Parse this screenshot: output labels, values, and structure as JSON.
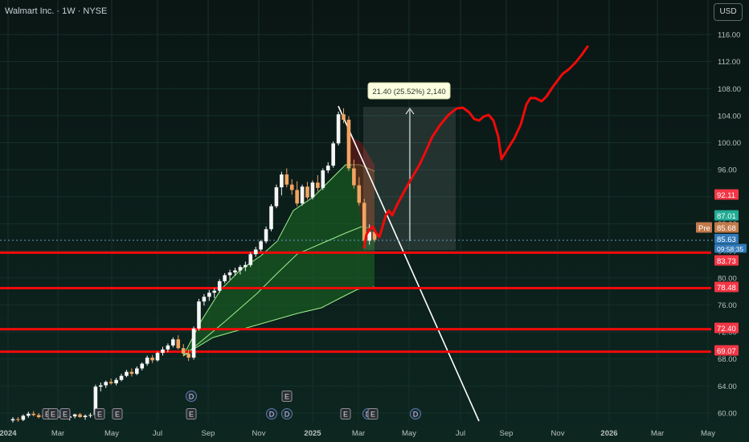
{
  "header": {
    "title": "Walmart Inc. · 1W · NYSE",
    "currency": "USD"
  },
  "chart_data": {
    "type": "candlestick",
    "title": "Walmart Inc. · 1W · NYSE",
    "x_labels": [
      "2024",
      "Mar",
      "May",
      "Jul",
      "Sep",
      "Nov",
      "2025",
      "Mar",
      "May",
      "Jul",
      "Sep",
      "Nov",
      "2026",
      "Mar",
      "May"
    ],
    "y_ticks": [
      116,
      112,
      108,
      104,
      100,
      96,
      92,
      88,
      84,
      80,
      76,
      72,
      68,
      64,
      60
    ],
    "y_range": [
      59,
      119
    ],
    "candles": [
      [
        58.9,
        59.4,
        58.6,
        59.1
      ],
      [
        59.1,
        59.4,
        58.7,
        59.0
      ],
      [
        59.0,
        59.8,
        58.8,
        59.6
      ],
      [
        59.6,
        60.2,
        59.3,
        59.9
      ],
      [
        59.9,
        60.3,
        59.5,
        59.7
      ],
      [
        59.7,
        60.0,
        59.2,
        59.4
      ],
      [
        59.4,
        59.9,
        59.1,
        59.7
      ],
      [
        59.7,
        60.0,
        59.3,
        59.5
      ],
      [
        59.5,
        59.9,
        59.2,
        59.7
      ],
      [
        59.7,
        60.0,
        59.3,
        59.6
      ],
      [
        59.6,
        59.9,
        59.1,
        59.3
      ],
      [
        59.3,
        59.7,
        58.9,
        59.5
      ],
      [
        59.5,
        59.9,
        59.2,
        59.8
      ],
      [
        59.8,
        60.0,
        59.3,
        59.4
      ],
      [
        59.4,
        59.8,
        59.0,
        59.6
      ],
      [
        59.6,
        60.0,
        59.3,
        59.7
      ],
      [
        59.7,
        64.2,
        59.5,
        63.9
      ],
      [
        63.9,
        64.5,
        63.2,
        64.1
      ],
      [
        64.1,
        64.8,
        63.7,
        64.6
      ],
      [
        64.6,
        65.1,
        64.2,
        64.4
      ],
      [
        64.4,
        65.2,
        64.1,
        64.9
      ],
      [
        64.9,
        65.8,
        64.7,
        65.5
      ],
      [
        65.5,
        66.4,
        65.3,
        66.1
      ],
      [
        66.1,
        66.6,
        65.4,
        65.8
      ],
      [
        65.8,
        66.9,
        65.6,
        66.6
      ],
      [
        66.6,
        67.5,
        66.3,
        67.3
      ],
      [
        67.3,
        68.5,
        67.0,
        68.2
      ],
      [
        68.2,
        68.6,
        67.4,
        67.8
      ],
      [
        67.8,
        69.1,
        67.6,
        68.9
      ],
      [
        68.9,
        69.8,
        68.5,
        69.4
      ],
      [
        69.4,
        70.3,
        69.0,
        70.0
      ],
      [
        70.0,
        71.2,
        69.7,
        70.9
      ],
      [
        70.9,
        71.5,
        69.4,
        69.6
      ],
      [
        69.6,
        70.2,
        68.4,
        68.8
      ],
      [
        68.8,
        69.4,
        67.7,
        68.2
      ],
      [
        68.2,
        72.8,
        67.9,
        72.5
      ],
      [
        72.5,
        76.9,
        72.2,
        76.5
      ],
      [
        76.5,
        77.6,
        75.9,
        77.2
      ],
      [
        77.2,
        78.2,
        76.6,
        77.8
      ],
      [
        77.8,
        78.5,
        77.0,
        78.1
      ],
      [
        78.1,
        79.8,
        77.8,
        79.5
      ],
      [
        79.5,
        80.7,
        79.2,
        80.4
      ],
      [
        80.4,
        81.2,
        79.7,
        80.8
      ],
      [
        80.8,
        81.5,
        80.3,
        81.1
      ],
      [
        81.1,
        81.9,
        80.5,
        81.6
      ],
      [
        81.6,
        82.4,
        81.0,
        81.9
      ],
      [
        81.9,
        83.8,
        81.6,
        83.5
      ],
      [
        83.5,
        84.6,
        83.1,
        84.2
      ],
      [
        84.2,
        85.6,
        83.9,
        85.4
      ],
      [
        85.4,
        87.6,
        85.1,
        87.2
      ],
      [
        87.2,
        90.9,
        86.9,
        90.6
      ],
      [
        90.6,
        93.8,
        90.3,
        93.4
      ],
      [
        93.4,
        95.7,
        92.2,
        95.3
      ],
      [
        95.3,
        96.2,
        93.4,
        93.8
      ],
      [
        93.8,
        94.6,
        92.3,
        93.0
      ],
      [
        93.0,
        94.3,
        90.6,
        91.0
      ],
      [
        91.0,
        93.8,
        90.7,
        93.5
      ],
      [
        93.5,
        94.2,
        91.6,
        91.9
      ],
      [
        91.9,
        94.4,
        91.6,
        94.1
      ],
      [
        94.1,
        95.2,
        92.8,
        93.3
      ],
      [
        93.3,
        96.2,
        93.0,
        95.9
      ],
      [
        95.9,
        97.1,
        95.5,
        96.6
      ],
      [
        96.6,
        100.2,
        96.3,
        99.9
      ],
      [
        99.9,
        104.6,
        99.6,
        104.2
      ],
      [
        104.2,
        105.1,
        102.9,
        103.4
      ],
      [
        103.4,
        103.9,
        95.8,
        96.2
      ],
      [
        96.2,
        97.5,
        93.2,
        93.7
      ],
      [
        93.7,
        94.9,
        90.7,
        91.1
      ],
      [
        91.1,
        91.7,
        85.1,
        85.5
      ],
      [
        85.5,
        87.9,
        84.9,
        86.8
      ],
      [
        86.8,
        87.4,
        85.3,
        85.63
      ]
    ],
    "price_labels": [
      {
        "text": "92.11",
        "color": "#f23645"
      },
      {
        "text": "87.01",
        "color": "#22ab94"
      },
      {
        "text": "Pre",
        "color": "#c27a4a"
      },
      {
        "text": "85.68",
        "color": "#c27a4a"
      },
      {
        "text": "85.63",
        "color": "#3179b8"
      },
      {
        "text": "09:58:35",
        "color": "#3179b8"
      },
      {
        "text": "83.73",
        "color": "#f23645"
      },
      {
        "text": "78.48",
        "color": "#f23645"
      },
      {
        "text": "72.40",
        "color": "#f23645"
      },
      {
        "text": "69.07",
        "color": "#f23645"
      }
    ],
    "horizontal_lines": [
      83.73,
      78.48,
      72.4,
      69.07
    ],
    "measure_label": "21.40 (25.52%) 2,140",
    "event_markers": [
      "E",
      "D",
      "E",
      "E",
      "E",
      "D",
      "E",
      "D",
      "E",
      "D",
      "E",
      "D",
      "E",
      "D",
      "E"
    ]
  },
  "colors": {
    "bg": "#0b1a17",
    "grid": "#18302c",
    "up": "#ffffff",
    "down": "#f2a462",
    "red": "#f00a0a",
    "green_fill": "#1f7a25"
  }
}
